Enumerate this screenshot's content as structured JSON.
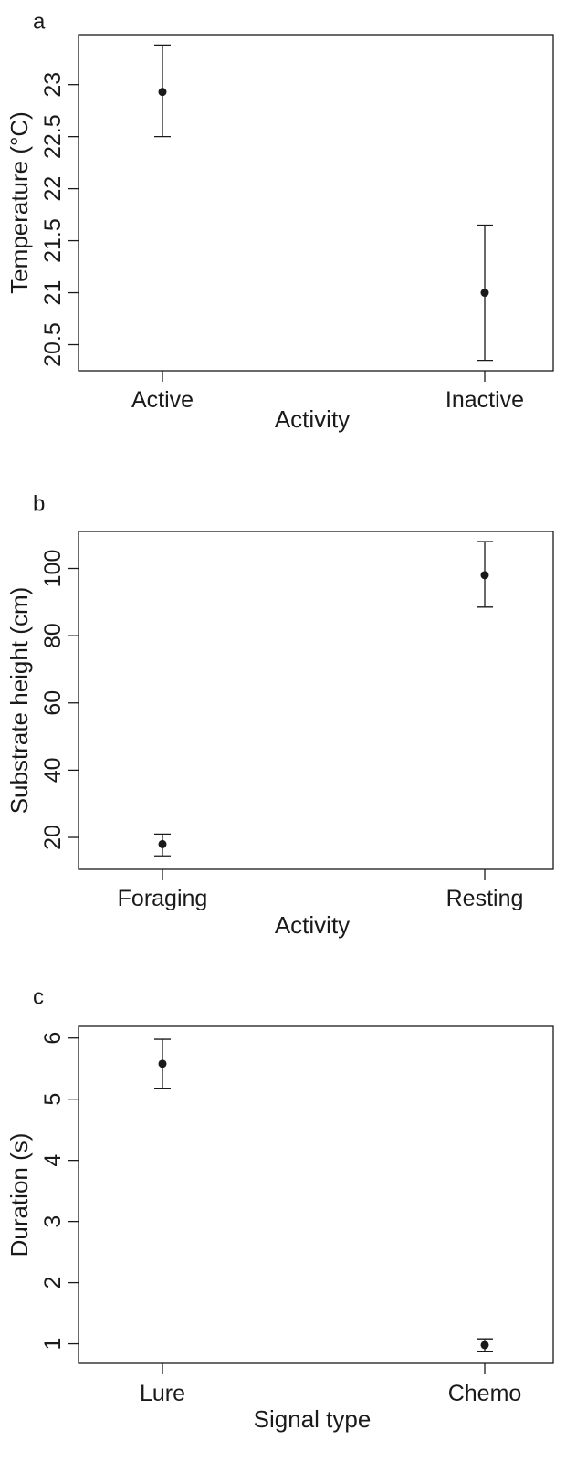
{
  "chart_data": [
    {
      "type": "scatter",
      "panel_label": "a",
      "categories": [
        "Active",
        "Inactive"
      ],
      "values": [
        22.93,
        21.0
      ],
      "error_low": [
        22.5,
        20.35
      ],
      "error_high": [
        23.38,
        21.65
      ],
      "ylim": [
        20.25,
        23.48
      ],
      "yticks": [
        20.5,
        21,
        21.5,
        22,
        22.5,
        23
      ],
      "ytick_labels": [
        "20.5",
        "21",
        "21.5",
        "22",
        "22.5",
        "23"
      ],
      "xlabel": "Activity",
      "ylabel": "Temperature (°C)",
      "grid": false,
      "color": "#1a1a1a"
    },
    {
      "type": "scatter",
      "panel_label": "b",
      "categories": [
        "Foraging",
        "Resting"
      ],
      "values": [
        18,
        98
      ],
      "error_low": [
        14.5,
        88.5
      ],
      "error_high": [
        21,
        108
      ],
      "ylim": [
        10.5,
        111
      ],
      "yticks": [
        20,
        40,
        60,
        80,
        100
      ],
      "ytick_labels": [
        "20",
        "40",
        "60",
        "80",
        "100"
      ],
      "xlabel": "Activity",
      "ylabel": "Substrate height (cm)",
      "grid": false,
      "color": "#1a1a1a"
    },
    {
      "type": "scatter",
      "panel_label": "c",
      "categories": [
        "Lure",
        "Chemo"
      ],
      "values": [
        5.58,
        0.98
      ],
      "error_low": [
        5.18,
        0.88
      ],
      "error_high": [
        5.98,
        1.08
      ],
      "ylim": [
        0.68,
        6.19
      ],
      "yticks": [
        1,
        2,
        3,
        4,
        5,
        6
      ],
      "ytick_labels": [
        "1",
        "2",
        "3",
        "4",
        "5",
        "6"
      ],
      "xlabel": "Signal type",
      "ylabel": "Duration (s)",
      "grid": false,
      "color": "#1a1a1a"
    }
  ]
}
